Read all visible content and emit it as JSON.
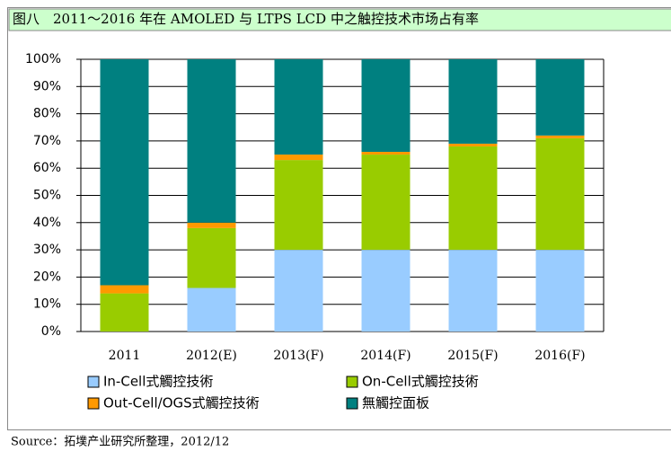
{
  "chart_data": {
    "type": "bar",
    "stacked": true,
    "title": "图八　2011～2016 年在 AMOLED 与 LTPS LCD 中之触控技术市场占有率",
    "source": "Source：拓墣产业研究所整理，2012/12",
    "categories": [
      "2011",
      "2012(E)",
      "2013(F)",
      "2014(F)",
      "2015(F)",
      "2016(F)"
    ],
    "series": [
      {
        "name": "In-Cell式觸控技術",
        "color": "#99ccff",
        "values": [
          0,
          16,
          30,
          30,
          30,
          30
        ]
      },
      {
        "name": "On-Cell式觸控技術",
        "color": "#99cc00",
        "values": [
          14,
          22,
          33,
          35,
          38,
          41
        ]
      },
      {
        "name": "Out-Cell/OGS式觸控技術",
        "color": "#ff9900",
        "values": [
          3,
          2,
          2,
          1,
          1,
          1
        ]
      },
      {
        "name": "無觸控面板",
        "color": "#008080",
        "values": [
          83,
          60,
          35,
          34,
          31,
          28
        ]
      }
    ],
    "ylim": [
      0,
      100
    ],
    "yticks": [
      {
        "value": 0,
        "label": "0%"
      },
      {
        "value": 10,
        "label": "10%"
      },
      {
        "value": 20,
        "label": "20%"
      },
      {
        "value": 30,
        "label": "30%"
      },
      {
        "value": 40,
        "label": "40%"
      },
      {
        "value": 50,
        "label": "50%"
      },
      {
        "value": 60,
        "label": "60%"
      },
      {
        "value": 70,
        "label": "70%"
      },
      {
        "value": 80,
        "label": "80%"
      },
      {
        "value": 90,
        "label": "90%"
      },
      {
        "value": 100,
        "label": "100%"
      }
    ],
    "grid": true
  }
}
